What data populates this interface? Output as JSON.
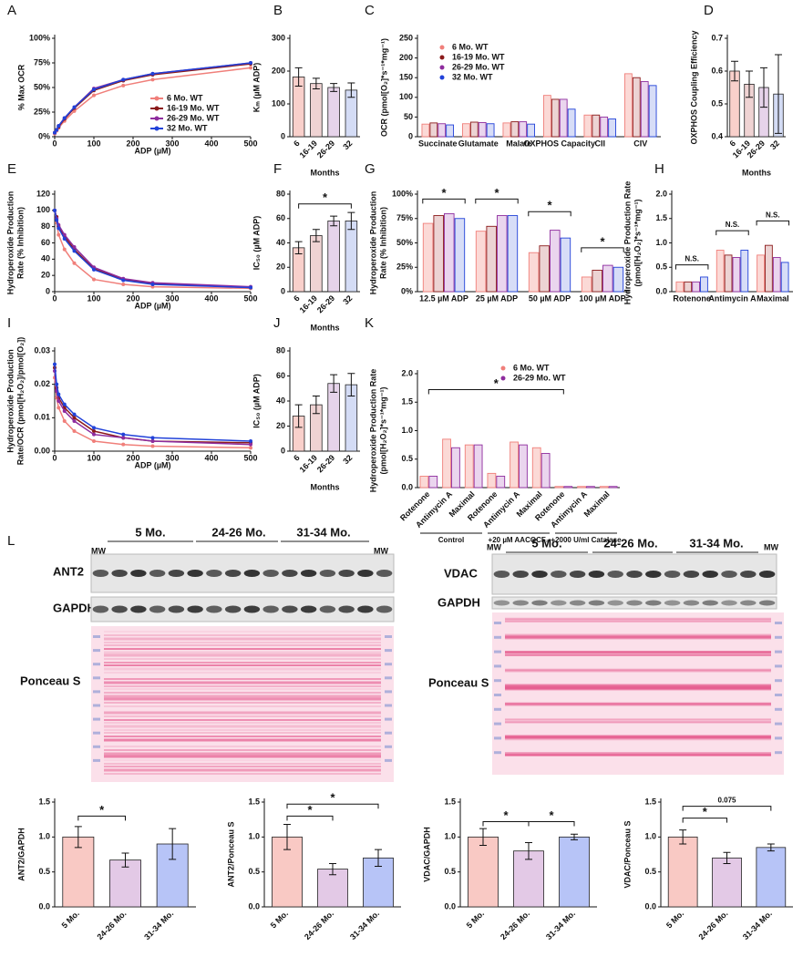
{
  "chart_data": [
    {
      "type": "line",
      "panel": "A",
      "x_label": "ADP (µM)",
      "y_label": [
        "% Max OCR"
      ],
      "x": [
        0,
        5,
        10,
        25,
        50,
        100,
        175,
        250,
        500
      ],
      "xlim": [
        0,
        500
      ],
      "xticks": [
        0,
        100,
        200,
        300,
        400,
        500
      ],
      "ylim": [
        0,
        100
      ],
      "yticks": [
        {
          "value": 0,
          "label": "0%"
        },
        {
          "value": 25,
          "label": "25%"
        },
        {
          "value": 50,
          "label": "50%"
        },
        {
          "value": 75,
          "label": "75%"
        },
        {
          "value": 100,
          "label": "100%"
        }
      ],
      "series": [
        {
          "name": "6 Mo. WT",
          "color": "#f07f7a",
          "values": [
            3,
            6,
            9,
            16,
            26,
            42,
            52,
            58,
            70
          ]
        },
        {
          "name": "16-19 Mo. WT",
          "color": "#8b1a1a",
          "values": [
            4,
            7,
            10,
            18,
            29,
            47,
            57,
            63,
            74
          ]
        },
        {
          "name": "26-29 Mo. WT",
          "color": "#8e2c9e",
          "values": [
            4,
            7,
            11,
            19,
            30,
            49,
            58,
            64,
            75
          ]
        },
        {
          "name": "32 Mo. WT",
          "color": "#2142d9",
          "values": [
            4,
            7,
            11,
            19,
            30,
            48,
            58,
            64,
            75
          ]
        }
      ]
    },
    {
      "type": "bar",
      "panel": "B",
      "x_label": "Months",
      "y_label": [
        "Kₘ (µM ADP)"
      ],
      "categories": [
        "6",
        "16-19",
        "26-29",
        "32"
      ],
      "values": [
        182,
        162,
        150,
        142
      ],
      "errors": [
        28,
        16,
        12,
        22
      ],
      "colors": [
        "#f9d0cb",
        "#efd3d3",
        "#e6d3ea",
        "#d4dcf5"
      ],
      "ylim": [
        0,
        300
      ],
      "yticks": [
        0,
        100,
        200,
        300
      ]
    },
    {
      "type": "grouped_bar",
      "panel": "C",
      "y_label": [
        "OCR (pmol[O₂]*s⁻¹*mg⁻¹)"
      ],
      "categories": [
        "Succinate",
        "Glutamate",
        "Malate",
        "OXPHOS Capacity",
        "CII",
        "CIV"
      ],
      "ylim": [
        0,
        250
      ],
      "yticks": [
        0,
        50,
        100,
        150,
        200,
        250
      ],
      "series": [
        {
          "name": "6 Mo. WT",
          "color": "#f07f7a",
          "fill": "#fbd9d6",
          "values": [
            32,
            33,
            35,
            105,
            55,
            160
          ]
        },
        {
          "name": "16-19 Mo. WT",
          "color": "#8b1a1a",
          "fill": "#ecd3d3",
          "values": [
            35,
            37,
            38,
            95,
            55,
            150
          ]
        },
        {
          "name": "26-29 Mo. WT",
          "color": "#8e2c9e",
          "fill": "#ead5ee",
          "values": [
            33,
            36,
            38,
            95,
            50,
            140
          ]
        },
        {
          "name": "32 Mo. WT",
          "color": "#2142d9",
          "fill": "#d7ddf7",
          "values": [
            30,
            33,
            32,
            70,
            45,
            130
          ]
        }
      ]
    },
    {
      "type": "bar",
      "panel": "D",
      "x_label": "Months",
      "y_label": [
        "OXPHOS Coupling Efficiency"
      ],
      "categories": [
        "6",
        "16-19",
        "26-29",
        "32"
      ],
      "values": [
        0.6,
        0.56,
        0.55,
        0.53
      ],
      "errors": [
        0.03,
        0.04,
        0.06,
        0.12
      ],
      "colors": [
        "#f9d0cb",
        "#efd3d3",
        "#e6d3ea",
        "#d4dcf5"
      ],
      "ylim": [
        0.4,
        0.7
      ],
      "yticks": [
        0.4,
        0.5,
        0.6,
        0.7
      ]
    },
    {
      "type": "line",
      "panel": "E",
      "x_label": "ADP (µM)",
      "y_label": [
        "Hydroperoxide Production",
        "Rate (% Inhibition)"
      ],
      "x": [
        0,
        5,
        10,
        25,
        50,
        100,
        175,
        250,
        500
      ],
      "xlim": [
        0,
        500
      ],
      "xticks": [
        0,
        100,
        200,
        300,
        400,
        500
      ],
      "ylim": [
        0,
        120
      ],
      "yticks": [
        0,
        20,
        40,
        60,
        80,
        100,
        120
      ],
      "series": [
        {
          "color": "#f07f7a",
          "values": [
            100,
            85,
            70,
            52,
            35,
            15,
            9,
            6,
            4
          ]
        },
        {
          "color": "#8b1a1a",
          "values": [
            100,
            92,
            80,
            68,
            52,
            28,
            15,
            10,
            5
          ]
        },
        {
          "color": "#8e2c9e",
          "values": [
            100,
            90,
            82,
            70,
            55,
            30,
            16,
            11,
            6
          ]
        },
        {
          "color": "#2142d9",
          "values": [
            100,
            88,
            78,
            65,
            50,
            27,
            14,
            9,
            5
          ]
        }
      ]
    },
    {
      "type": "bar",
      "panel": "F",
      "x_label": "Months",
      "y_label": [
        "IC₅₀ (µM ADP)"
      ],
      "categories": [
        "6",
        "16-19",
        "26-29",
        "32"
      ],
      "values": [
        36,
        46,
        58,
        58
      ],
      "errors": [
        5,
        5,
        4,
        7
      ],
      "colors": [
        "#f9d0cb",
        "#efd3d3",
        "#e6d3ea",
        "#d4dcf5"
      ],
      "ylim": [
        0,
        80
      ],
      "yticks": [
        0,
        20,
        40,
        60,
        80
      ],
      "annotations": [
        "*"
      ]
    },
    {
      "type": "grouped_bar",
      "panel": "G",
      "y_label": [
        "Hydroperoxide Production",
        "Rate (% Inhibition)"
      ],
      "categories": [
        "12.5 µM ADP",
        "25 µM ADP",
        "50 µM ADP",
        "100 µM ADP"
      ],
      "ylim": [
        0,
        100
      ],
      "yticks": [
        {
          "value": 0,
          "label": "0%"
        },
        {
          "value": 25,
          "label": "25%"
        },
        {
          "value": 50,
          "label": "50%"
        },
        {
          "value": 75,
          "label": "75%"
        },
        {
          "value": 100,
          "label": "100%"
        }
      ],
      "series": [
        {
          "color": "#f07f7a",
          "fill": "#fbd9d6",
          "values": [
            70,
            62,
            40,
            15
          ]
        },
        {
          "color": "#8b1a1a",
          "fill": "#ecd3d3",
          "values": [
            78,
            67,
            47,
            22
          ]
        },
        {
          "color": "#8e2c9e",
          "fill": "#ead5ee",
          "values": [
            80,
            78,
            63,
            27
          ]
        },
        {
          "color": "#2142d9",
          "fill": "#d7ddf7",
          "values": [
            75,
            78,
            55,
            25
          ]
        }
      ],
      "annotations": [
        "*",
        "*",
        "*",
        "*"
      ]
    },
    {
      "type": "grouped_bar",
      "panel": "H",
      "y_label": [
        "Hydroperoxide Production Rate",
        "(pmol[H₂O₂]*s⁻¹*mg⁻¹)"
      ],
      "categories": [
        "Rotenone",
        "Antimycin A",
        "Maximal"
      ],
      "ylim": [
        0,
        2
      ],
      "yticks": [
        {
          "value": 0,
          "label": "0.0"
        },
        0.5,
        {
          "value": 1,
          "label": "1.0"
        },
        1.5,
        {
          "value": 2,
          "label": "2.0"
        }
      ],
      "series": [
        {
          "color": "#f07f7a",
          "fill": "#fbd9d6",
          "values": [
            0.2,
            0.85,
            0.75
          ]
        },
        {
          "color": "#8b1a1a",
          "fill": "#ecd3d3",
          "values": [
            0.2,
            0.75,
            0.95
          ]
        },
        {
          "color": "#8e2c9e",
          "fill": "#ead5ee",
          "values": [
            0.2,
            0.7,
            0.7
          ]
        },
        {
          "color": "#2142d9",
          "fill": "#d7ddf7",
          "values": [
            0.3,
            0.85,
            0.6
          ]
        }
      ],
      "annotations": [
        "N.S.",
        "N.S.",
        "N.S."
      ]
    },
    {
      "type": "line",
      "panel": "I",
      "x_label": "ADP (µM)",
      "y_label": [
        "Hydroperoxide Production",
        "Rate/OCR (pmol[H₂O₂]/pmol[O₂])"
      ],
      "x": [
        0,
        5,
        10,
        25,
        50,
        100,
        175,
        250,
        500
      ],
      "xlim": [
        0,
        500
      ],
      "xticks": [
        0,
        100,
        200,
        300,
        400,
        500
      ],
      "ylim": [
        0,
        0.03
      ],
      "yticks": [
        {
          "value": 0,
          "label": "0.00"
        },
        0.01,
        0.02,
        0.03
      ],
      "series": [
        {
          "color": "#f07f7a",
          "values": [
            0.022,
            0.016,
            0.013,
            0.009,
            0.006,
            0.003,
            0.002,
            0.0015,
            0.001
          ]
        },
        {
          "color": "#8b1a1a",
          "values": [
            0.025,
            0.019,
            0.016,
            0.013,
            0.01,
            0.006,
            0.004,
            0.003,
            0.0025
          ]
        },
        {
          "color": "#8e2c9e",
          "values": [
            0.024,
            0.018,
            0.015,
            0.012,
            0.009,
            0.005,
            0.004,
            0.003,
            0.002
          ]
        },
        {
          "color": "#2142d9",
          "values": [
            0.026,
            0.02,
            0.017,
            0.014,
            0.011,
            0.007,
            0.005,
            0.004,
            0.003
          ]
        }
      ]
    },
    {
      "type": "bar",
      "panel": "J",
      "x_label": "Months",
      "y_label": [
        "IC₅₀ (µM ADP)"
      ],
      "categories": [
        "6",
        "16-19",
        "26-29",
        "32"
      ],
      "values": [
        28,
        37,
        54,
        53
      ],
      "errors": [
        9,
        7,
        7,
        9
      ],
      "colors": [
        "#f9d0cb",
        "#efd3d3",
        "#e6d3ea",
        "#d4dcf5"
      ],
      "ylim": [
        0,
        80
      ],
      "yticks": [
        0,
        20,
        40,
        60,
        80
      ]
    },
    {
      "type": "grouped_bar",
      "panel": "K",
      "y_label": [
        "Hydroperoxide Production Rate",
        "(pmol[H₂O₂]*s⁻¹*mg⁻¹)"
      ],
      "categories": [
        "Rotenone",
        "Antimycin A",
        "Maximal",
        "Rotenone",
        "Antimycin A",
        "Maximal",
        "Rotenone",
        "Antimycin A",
        "Maximal"
      ],
      "groups": [
        "Control",
        "+20 µM AACOCF₃",
        "+2000 U/ml Catalase"
      ],
      "ylim": [
        0,
        2
      ],
      "yticks": [
        {
          "value": 0,
          "label": "0.0"
        },
        0.5,
        {
          "value": 1,
          "label": "1.0"
        },
        1.5,
        {
          "value": 2,
          "label": "2.0"
        }
      ],
      "series": [
        {
          "name": "6 Mo. WT",
          "color": "#f07f7a",
          "fill": "#fbd9d6",
          "values": [
            0.2,
            0.85,
            0.75,
            0.25,
            0.8,
            0.7,
            0.02,
            0.02,
            0.02
          ]
        },
        {
          "name": "26-29 Mo. WT",
          "color": "#8e2c9e",
          "fill": "#ead5ee",
          "values": [
            0.2,
            0.7,
            0.75,
            0.2,
            0.75,
            0.6,
            0.02,
            0.02,
            0.02
          ]
        }
      ],
      "annotations": [
        "*"
      ]
    },
    {
      "type": "bar",
      "y_label": [
        "ANT2/GAPDH"
      ],
      "categories": [
        "5 Mo.",
        "24-26 Mo.",
        "31-34 Mo."
      ],
      "values": [
        1.0,
        0.67,
        0.9
      ],
      "errors": [
        0.15,
        0.1,
        0.22
      ],
      "colors": [
        "#f9c9c4",
        "#e3c9e6",
        "#b7c4f7"
      ],
      "ylim": [
        0,
        1.5
      ],
      "yticks": [
        {
          "value": 0,
          "label": "0.0"
        },
        0.5,
        {
          "value": 1,
          "label": "1.0"
        },
        1.5
      ],
      "annotations": [
        "*"
      ]
    },
    {
      "type": "bar",
      "y_label": [
        "ANT2/Ponceau S"
      ],
      "categories": [
        "5 Mo.",
        "24-26 Mo.",
        "31-34 Mo."
      ],
      "values": [
        1.0,
        0.54,
        0.7
      ],
      "errors": [
        0.18,
        0.08,
        0.12
      ],
      "colors": [
        "#f9c9c4",
        "#e3c9e6",
        "#b7c4f7"
      ],
      "ylim": [
        0,
        1.5
      ],
      "yticks": [
        {
          "value": 0,
          "label": "0.0"
        },
        0.5,
        {
          "value": 1,
          "label": "1.0"
        },
        1.5
      ],
      "annotations": [
        "*",
        "*"
      ]
    },
    {
      "type": "bar",
      "y_label": [
        "VDAC/GAPDH"
      ],
      "categories": [
        "5 Mo.",
        "24-26 Mo.",
        "31-34 Mo."
      ],
      "values": [
        1.0,
        0.8,
        1.0
      ],
      "errors": [
        0.12,
        0.12,
        0.04
      ],
      "colors": [
        "#f9c9c4",
        "#e3c9e6",
        "#b7c4f7"
      ],
      "ylim": [
        0,
        1.5
      ],
      "yticks": [
        {
          "value": 0,
          "label": "0.0"
        },
        0.5,
        {
          "value": 1,
          "label": "1.0"
        },
        1.5
      ],
      "annotations": [
        "*",
        "*"
      ]
    },
    {
      "type": "bar",
      "y_label": [
        "VDAC/Ponceau S"
      ],
      "categories": [
        "5 Mo.",
        "24-26 Mo.",
        "31-34 Mo."
      ],
      "values": [
        1.0,
        0.7,
        0.85
      ],
      "errors": [
        0.1,
        0.08,
        0.05
      ],
      "colors": [
        "#f9c9c4",
        "#e3c9e6",
        "#b7c4f7"
      ],
      "ylim": [
        0,
        1.5
      ],
      "yticks": [
        {
          "value": 0,
          "label": "0.0"
        },
        0.5,
        {
          "value": 1,
          "label": "1.0"
        },
        1.5
      ],
      "annotations": [
        "*",
        "0.075"
      ]
    }
  ],
  "blots": {
    "panel": "L",
    "left": {
      "groups": [
        "5 Mo.",
        "24-26 Mo.",
        "31-34 Mo."
      ],
      "marker": "MW",
      "rows": [
        "ANT2",
        "GAPDH",
        "Ponceau S"
      ]
    },
    "right": {
      "groups": [
        "5 Mo.",
        "24-26 Mo.",
        "31-34 Mo."
      ],
      "marker": "MW",
      "rows": [
        "VDAC",
        "GAPDH",
        "Ponceau S"
      ]
    }
  }
}
